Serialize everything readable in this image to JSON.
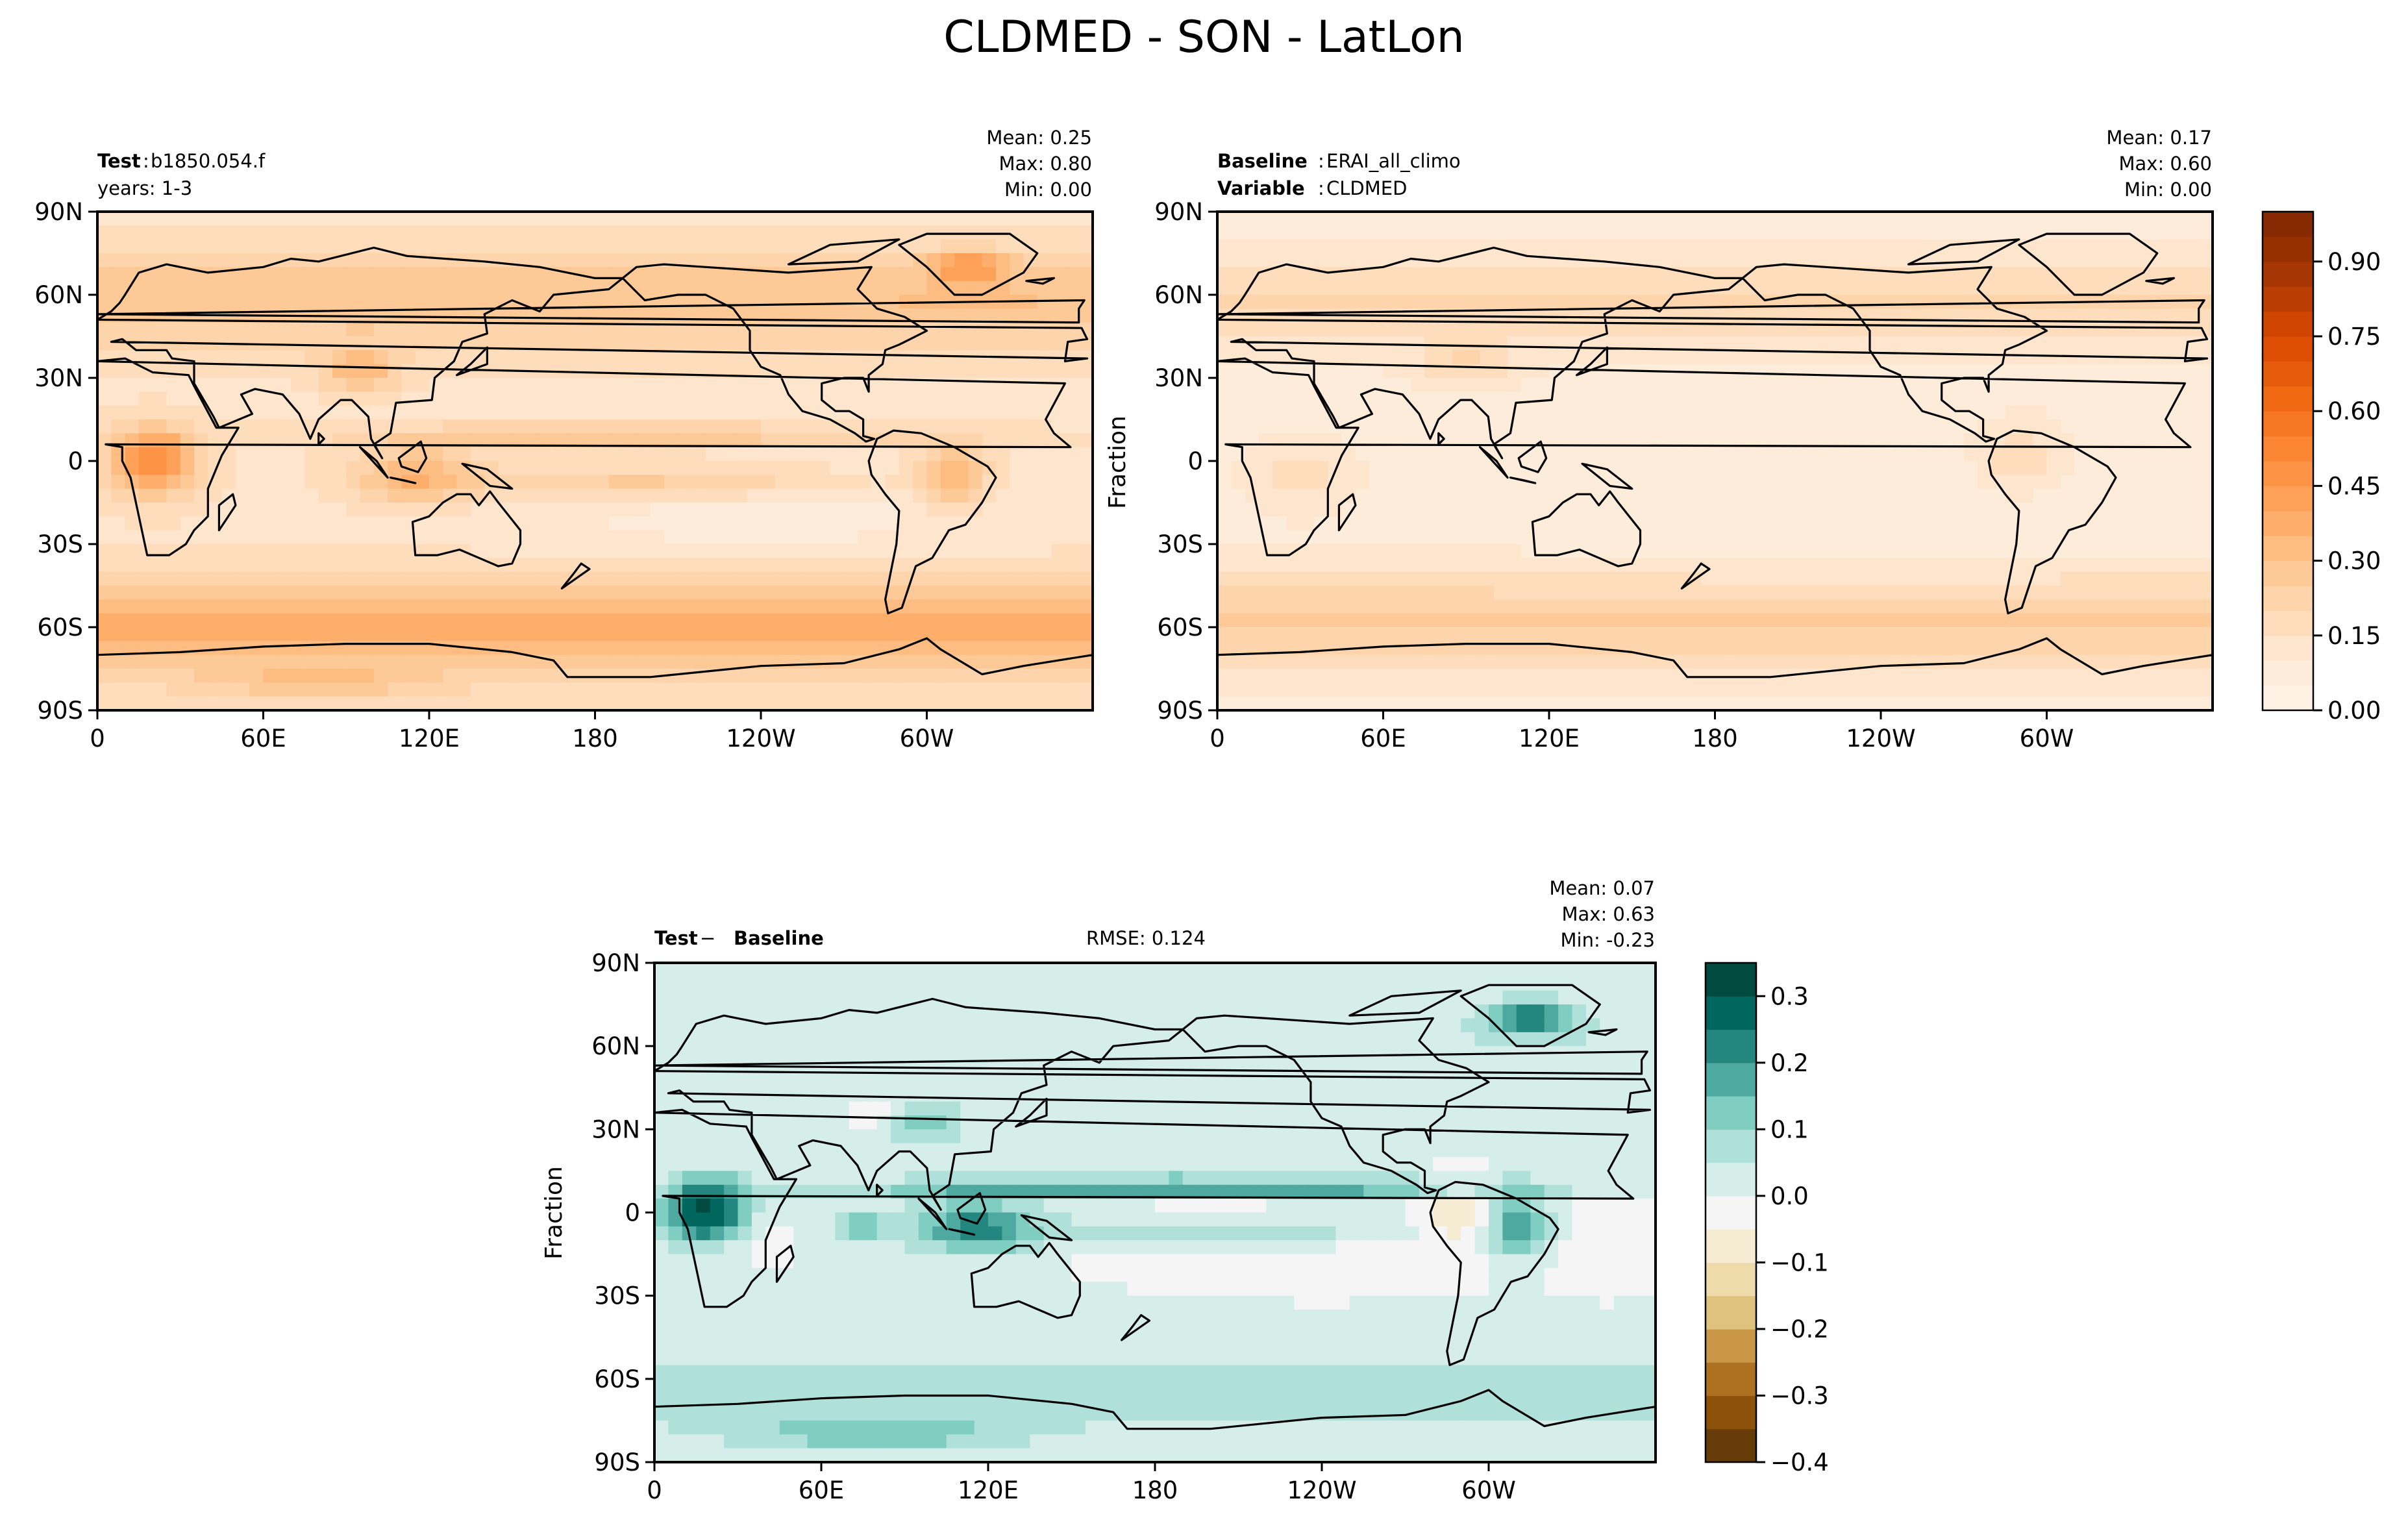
{
  "figure": {
    "title": "CLDMED - SON - LatLon"
  },
  "colors": {
    "seq_scale": [
      "#fff5eb",
      "#fee6ce",
      "#fdd0a2",
      "#fdae6b",
      "#fd8d3c",
      "#f16913",
      "#d94801",
      "#a63603",
      "#7f2704"
    ],
    "div_scale": [
      "#543005",
      "#8c510a",
      "#bf812d",
      "#dfc27d",
      "#f6e8c3",
      "#f5f5f5",
      "#c7eae5",
      "#80cdc1",
      "#35978f",
      "#01665e",
      "#003c30"
    ],
    "land_outline": "#000000"
  },
  "chart_data": [
    {
      "type": "heatmap",
      "name": "test",
      "label_bold": "Test",
      "label_value": "b1850.054.f",
      "sub_label": "years: 1-3",
      "stats": {
        "mean": "Mean:  0.25",
        "max": "Max:  0.80",
        "min": "Min:  0.00"
      },
      "stats_values": {
        "mean": 0.25,
        "max": 0.8,
        "min": 0.0
      },
      "ylabel": "",
      "x_ticks": [
        "0",
        "60E",
        "120E",
        "180",
        "120W",
        "60W"
      ],
      "y_ticks": [
        "90N",
        "60N",
        "30N",
        "0",
        "30S",
        "60S",
        "90S"
      ],
      "xlim": [
        0,
        360
      ],
      "ylim": [
        -90,
        90
      ],
      "units": "Fraction"
    },
    {
      "type": "heatmap",
      "name": "baseline",
      "label_bold": "Baseline",
      "label_value": "ERAI_all_climo",
      "label2_bold": "Variable",
      "label2_value": "CLDMED",
      "stats": {
        "mean": "Mean:  0.17",
        "max": "Max:  0.60",
        "min": "Min:  0.00"
      },
      "stats_values": {
        "mean": 0.17,
        "max": 0.6,
        "min": 0.0
      },
      "ylabel": "Fraction",
      "x_ticks": [
        "0",
        "60E",
        "120E",
        "180",
        "120W",
        "60W"
      ],
      "y_ticks": [
        "90N",
        "60N",
        "30N",
        "0",
        "30S",
        "60S",
        "90S"
      ],
      "xlim": [
        0,
        360
      ],
      "ylim": [
        -90,
        90
      ],
      "colorbar": {
        "ticks": [
          "0.00",
          "0.15",
          "0.30",
          "0.45",
          "0.60",
          "0.75",
          "0.90"
        ],
        "range": [
          0.0,
          1.0
        ],
        "levels": 20
      }
    },
    {
      "type": "heatmap",
      "name": "diff",
      "label_bold_a": "Test",
      "label_sep": " − ",
      "label_bold_b": "Baseline",
      "rmse": "RMSE: 0.124",
      "rmse_value": 0.124,
      "stats": {
        "mean": "Mean:  0.07",
        "max": "Max:  0.63",
        "min": "Min: -0.23"
      },
      "stats_values": {
        "mean": 0.07,
        "max": 0.63,
        "min": -0.23
      },
      "ylabel": "Fraction",
      "x_ticks": [
        "0",
        "60E",
        "120E",
        "180",
        "120W",
        "60W"
      ],
      "y_ticks": [
        "90N",
        "60N",
        "30N",
        "0",
        "30S",
        "60S",
        "90S"
      ],
      "xlim": [
        0,
        360
      ],
      "ylim": [
        -90,
        90
      ],
      "colorbar": {
        "ticks": [
          "0.3",
          "0.2",
          "0.1",
          "0.0",
          "−0.1",
          "−0.2",
          "−0.3",
          "−0.4"
        ],
        "range": [
          -0.4,
          0.35
        ],
        "levels": 15
      }
    }
  ]
}
